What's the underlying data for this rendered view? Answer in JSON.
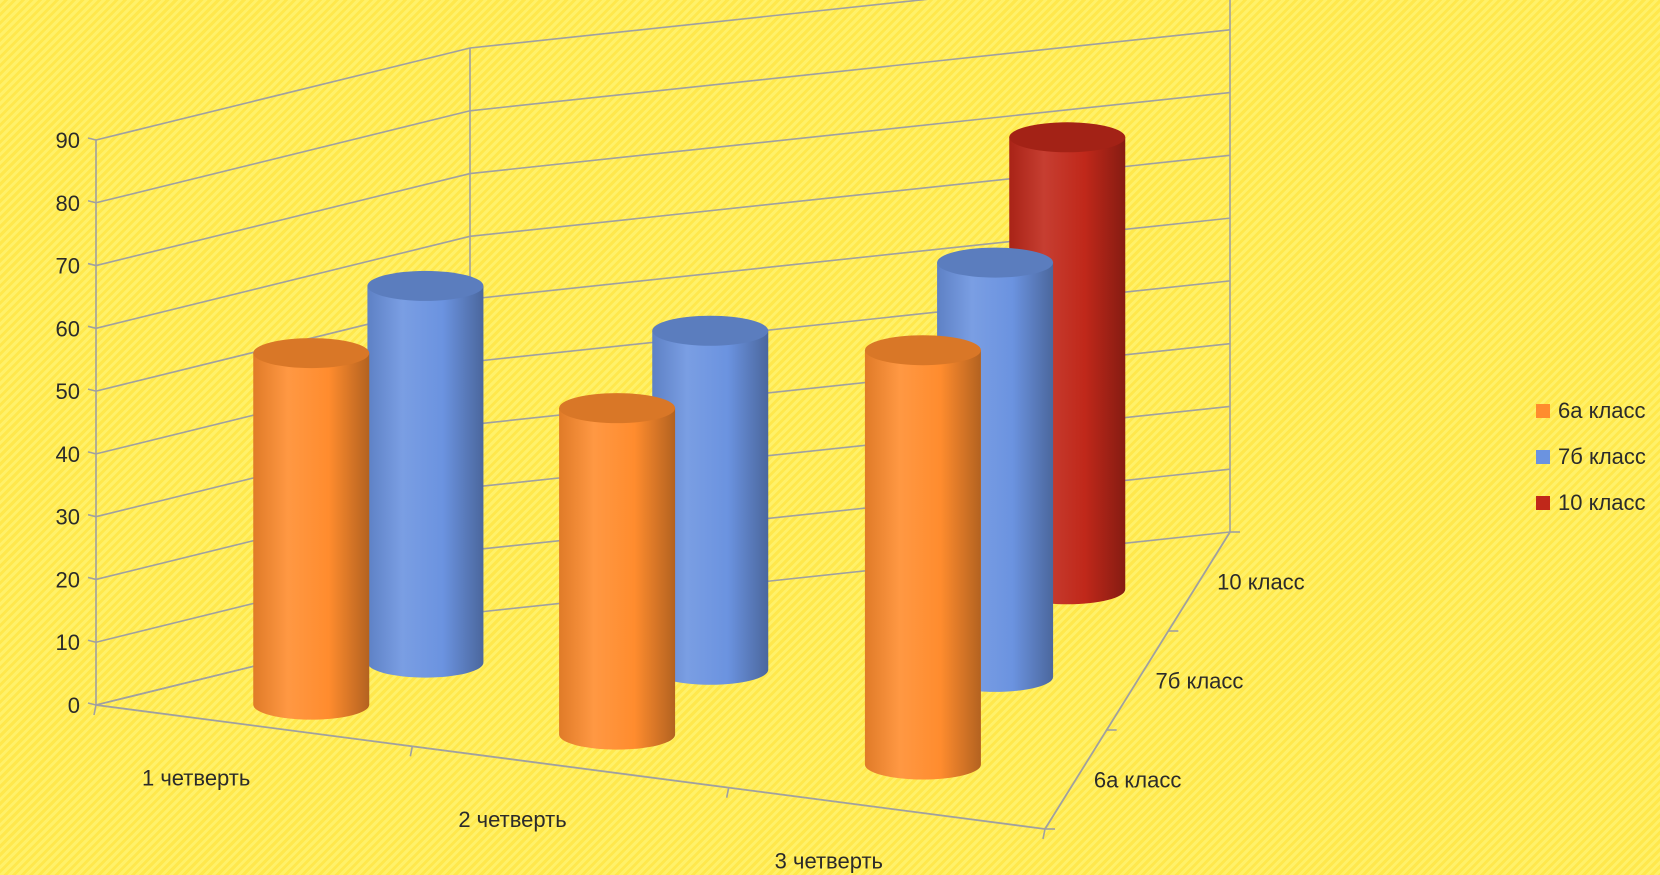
{
  "chart_data": {
    "type": "bar",
    "subtype": "3d-cylinder",
    "categories": [
      "1 четверть",
      "2 четверть",
      "3 четверть"
    ],
    "series": [
      {
        "name": "6а класс",
        "color": "#ff8c2e",
        "values": [
          56,
          52,
          66
        ]
      },
      {
        "name": "7б класс",
        "color": "#6b93e0",
        "values": [
          60,
          54,
          66
        ]
      },
      {
        "name": "10 класс",
        "color": "#c0281a",
        "values": [
          null,
          null,
          72
        ]
      }
    ],
    "ylim": [
      0,
      90
    ],
    "yticks": [
      "0",
      "10",
      "20",
      "30",
      "40",
      "50",
      "60",
      "70",
      "80",
      "90"
    ],
    "depth_labels": [
      "6а класс",
      "7б класс",
      "10 класс"
    ],
    "legend_position": "right",
    "grid": true
  }
}
